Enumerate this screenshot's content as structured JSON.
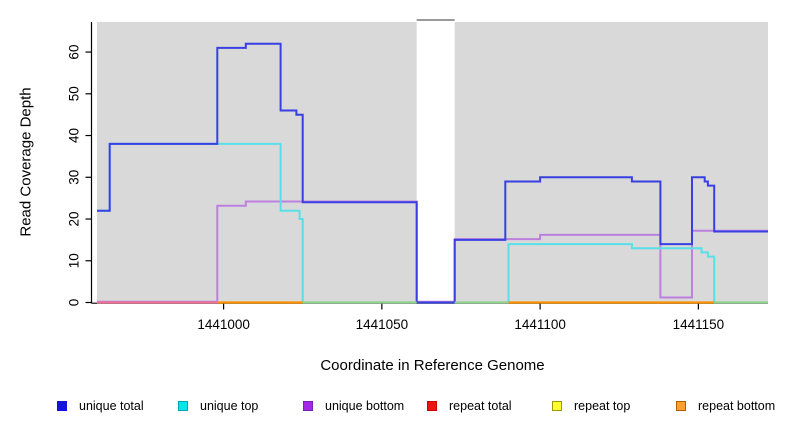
{
  "chart_data": {
    "type": "step-line",
    "title": "",
    "xlabel": "Coordinate in Reference Genome",
    "ylabel": "Read Coverage Depth",
    "xlim": [
      1440960,
      1441172
    ],
    "ylim": [
      0,
      67.2
    ],
    "x_ticks": [
      "1441000",
      "1441050",
      "1441100",
      "1441150"
    ],
    "x_tick_values": [
      1441000,
      1441050,
      1441100,
      1441150
    ],
    "y_ticks": [
      "0",
      "10",
      "20",
      "30",
      "40",
      "50",
      "60"
    ],
    "y_tick_values": [
      0,
      10,
      20,
      30,
      40,
      50,
      60
    ],
    "grid": "off",
    "plot_background": "#d9d9d9",
    "series": [
      {
        "name": "unique bottom",
        "color": "#bd7fe0",
        "points": [
          [
            1440960,
            0
          ],
          [
            1440998,
            23
          ],
          [
            1441007,
            24
          ],
          [
            1441061,
            0
          ],
          [
            1441073,
            15
          ],
          [
            1441100,
            16
          ],
          [
            1441138,
            1
          ],
          [
            1441148,
            17
          ]
        ]
      },
      {
        "name": "unique top",
        "color": "#58dfe8",
        "points": [
          [
            1440960,
            22
          ],
          [
            1440964,
            38
          ],
          [
            1441018,
            22
          ],
          [
            1441024,
            20
          ],
          [
            1441025,
            0
          ],
          [
            1441090,
            14
          ],
          [
            1441129,
            13
          ],
          [
            1441151,
            12
          ],
          [
            1441153,
            11
          ],
          [
            1441155,
            0
          ]
        ]
      },
      {
        "name": "unique total",
        "color": "#3940e2",
        "points": [
          [
            1440960,
            22
          ],
          [
            1440964,
            38
          ],
          [
            1440998,
            61
          ],
          [
            1441007,
            62
          ],
          [
            1441018,
            46
          ],
          [
            1441023,
            45
          ],
          [
            1441025,
            24
          ],
          [
            1441061,
            0
          ],
          [
            1441073,
            15
          ],
          [
            1441089,
            29
          ],
          [
            1441100,
            30
          ],
          [
            1441129,
            29
          ],
          [
            1441138,
            14
          ],
          [
            1441148,
            30
          ],
          [
            1441152,
            29
          ],
          [
            1441153,
            28
          ],
          [
            1441155,
            17
          ]
        ]
      }
    ],
    "baseline_segments": [
      {
        "name": "repeat-total-at-zero",
        "color": "#ea7295",
        "from": 1440960,
        "to": 1440998
      },
      {
        "name": "repeat-bottom-at-zero",
        "color": "#ff9100",
        "from": 1440998,
        "to": 1441025
      },
      {
        "name": "zero-coverage",
        "color": "#90d190",
        "from": 1441025,
        "to": 1441061
      },
      {
        "name": "zero-coverage",
        "color": "#90d190",
        "from": 1441073,
        "to": 1441090
      },
      {
        "name": "repeat-bottom-at-zero",
        "color": "#ff9100",
        "from": 1441090,
        "to": 1441155
      },
      {
        "name": "zero-coverage",
        "color": "#90d190",
        "from": 1441155,
        "to": 1441172
      }
    ],
    "mask_region": {
      "from": 1441061,
      "to": 1441073,
      "fill": "#ffffff",
      "cap_color": "#8c8c8c"
    }
  },
  "legend": {
    "items": [
      {
        "label": "unique total",
        "color": "#1414dd",
        "border": "#1414dd"
      },
      {
        "label": "unique top",
        "color": "#00e6ee",
        "border": "#00a6b4"
      },
      {
        "label": "unique bottom",
        "color": "#a428e8",
        "border": "#7c1fb4"
      },
      {
        "label": "repeat total",
        "color": "#ee1111",
        "border": "#cc0000"
      },
      {
        "label": "repeat top",
        "color": "#ffff2e",
        "border": "#9a9a00"
      },
      {
        "label": "repeat bottom",
        "color": "#ffa02e",
        "border": "#b06000"
      }
    ]
  }
}
